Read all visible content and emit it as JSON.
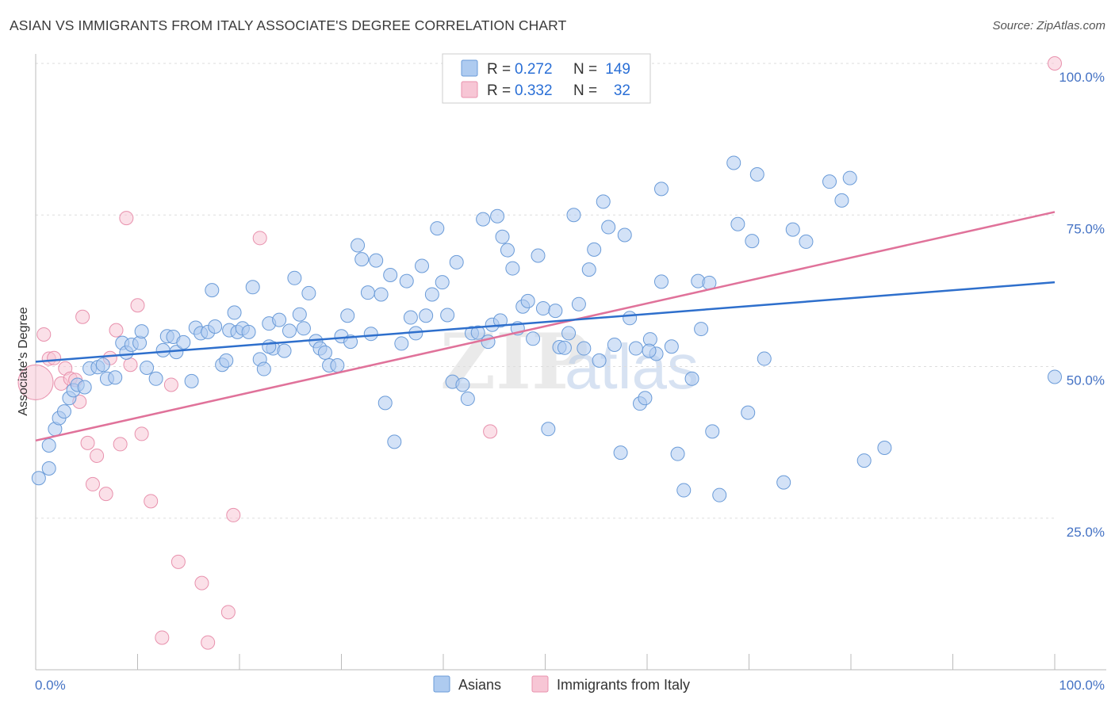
{
  "header": {
    "title": "ASIAN VS IMMIGRANTS FROM ITALY ASSOCIATE'S DEGREE CORRELATION CHART",
    "source": "Source: ZipAtlas.com"
  },
  "watermark": {
    "zip": "ZIP",
    "atlas": "atlas"
  },
  "legend_top": [
    {
      "r_label": "R =",
      "r_value": "0.272",
      "n_label": "N =",
      "n_value": "149"
    },
    {
      "r_label": "R =",
      "r_value": "0.332",
      "n_label": "N =",
      "n_value": "32"
    }
  ],
  "legend_bottom": [
    "Asians",
    "Immigrants from Italy"
  ],
  "colors": {
    "asian_fill": "#aecbf0",
    "asian_stroke": "#6a9bd8",
    "asian_line": "#2e6fcc",
    "italy_fill": "#f7c6d5",
    "italy_stroke": "#e891ad",
    "italy_line": "#e0729a",
    "tick_label": "#4472c4",
    "grid": "#dddddd"
  },
  "chart_data": {
    "type": "scatter",
    "title": "ASIAN VS IMMIGRANTS FROM ITALY ASSOCIATE'S DEGREE CORRELATION CHART",
    "xlabel": "",
    "ylabel": "Associate's Degree",
    "xlim": [
      0,
      100
    ],
    "ylim": [
      0,
      100
    ],
    "x_tick_labels": [
      "0.0%",
      "100.0%"
    ],
    "y_tick_labels": [
      "25.0%",
      "50.0%",
      "75.0%",
      "100.0%"
    ],
    "y_ticks": [
      25,
      50,
      75,
      100
    ],
    "grid": true,
    "legend_position": "top-center",
    "series": [
      {
        "name": "Asians",
        "r": 0.272,
        "n": 149,
        "trend": {
          "x": [
            0,
            100
          ],
          "y": [
            50.8,
            63.9
          ]
        },
        "points": [
          [
            0.3,
            31.6
          ],
          [
            1.3,
            33.2
          ],
          [
            1.3,
            37.0
          ],
          [
            1.9,
            39.7
          ],
          [
            2.3,
            41.5
          ],
          [
            2.8,
            42.6
          ],
          [
            3.3,
            44.8
          ],
          [
            3.7,
            46.1
          ],
          [
            4.1,
            47.0
          ],
          [
            4.8,
            46.6
          ],
          [
            5.3,
            49.7
          ],
          [
            6.1,
            49.9
          ],
          [
            7.0,
            48.0
          ],
          [
            6.6,
            50.3
          ],
          [
            7.8,
            48.2
          ],
          [
            8.5,
            53.9
          ],
          [
            8.9,
            52.3
          ],
          [
            9.4,
            53.6
          ],
          [
            10.2,
            53.9
          ],
          [
            10.4,
            55.8
          ],
          [
            10.9,
            49.8
          ],
          [
            11.8,
            48.0
          ],
          [
            12.5,
            52.7
          ],
          [
            12.9,
            55.0
          ],
          [
            13.5,
            54.9
          ],
          [
            13.8,
            52.4
          ],
          [
            14.5,
            54.0
          ],
          [
            15.3,
            47.6
          ],
          [
            15.7,
            56.4
          ],
          [
            16.2,
            55.5
          ],
          [
            16.9,
            55.7
          ],
          [
            17.3,
            62.6
          ],
          [
            17.6,
            56.6
          ],
          [
            18.3,
            50.3
          ],
          [
            18.7,
            51.0
          ],
          [
            19.0,
            56.0
          ],
          [
            19.5,
            58.9
          ],
          [
            19.8,
            55.7
          ],
          [
            20.3,
            56.3
          ],
          [
            20.9,
            55.7
          ],
          [
            21.3,
            63.1
          ],
          [
            22.0,
            51.2
          ],
          [
            22.4,
            49.6
          ],
          [
            22.9,
            57.1
          ],
          [
            23.3,
            53.0
          ],
          [
            23.9,
            57.7
          ],
          [
            24.4,
            52.6
          ],
          [
            24.9,
            55.9
          ],
          [
            25.4,
            64.6
          ],
          [
            25.9,
            58.6
          ],
          [
            26.3,
            56.3
          ],
          [
            26.8,
            62.1
          ],
          [
            27.5,
            54.2
          ],
          [
            27.9,
            53.0
          ],
          [
            28.4,
            52.3
          ],
          [
            28.8,
            50.2
          ],
          [
            29.6,
            50.2
          ],
          [
            30.0,
            55.0
          ],
          [
            30.6,
            58.4
          ],
          [
            30.9,
            54.1
          ],
          [
            31.6,
            70.0
          ],
          [
            32.0,
            67.7
          ],
          [
            32.6,
            62.2
          ],
          [
            32.9,
            55.4
          ],
          [
            33.4,
            67.5
          ],
          [
            33.9,
            61.9
          ],
          [
            34.3,
            44.0
          ],
          [
            34.8,
            65.1
          ],
          [
            35.2,
            37.6
          ],
          [
            35.9,
            53.8
          ],
          [
            36.4,
            64.1
          ],
          [
            36.8,
            58.1
          ],
          [
            37.3,
            55.5
          ],
          [
            37.9,
            66.6
          ],
          [
            38.3,
            58.4
          ],
          [
            38.9,
            61.9
          ],
          [
            39.4,
            72.8
          ],
          [
            39.9,
            63.9
          ],
          [
            40.4,
            58.5
          ],
          [
            40.9,
            47.5
          ],
          [
            41.3,
            67.2
          ],
          [
            41.9,
            47.0
          ],
          [
            42.4,
            44.7
          ],
          [
            42.8,
            55.5
          ],
          [
            43.4,
            55.6
          ],
          [
            43.9,
            74.3
          ],
          [
            44.4,
            54.1
          ],
          [
            44.8,
            56.9
          ],
          [
            45.3,
            74.8
          ],
          [
            45.8,
            71.4
          ],
          [
            46.3,
            69.2
          ],
          [
            46.8,
            66.2
          ],
          [
            47.3,
            56.3
          ],
          [
            47.8,
            59.9
          ],
          [
            48.3,
            60.8
          ],
          [
            48.8,
            54.6
          ],
          [
            49.3,
            68.3
          ],
          [
            49.8,
            59.6
          ],
          [
            50.3,
            39.7
          ],
          [
            51.0,
            59.2
          ],
          [
            51.4,
            53.2
          ],
          [
            51.9,
            53.1
          ],
          [
            52.3,
            55.5
          ],
          [
            52.8,
            75.0
          ],
          [
            53.3,
            60.3
          ],
          [
            53.8,
            53.0
          ],
          [
            54.3,
            66.0
          ],
          [
            54.8,
            69.3
          ],
          [
            55.3,
            51.0
          ],
          [
            55.7,
            77.2
          ],
          [
            56.2,
            73.0
          ],
          [
            56.8,
            53.6
          ],
          [
            57.4,
            35.8
          ],
          [
            57.8,
            71.7
          ],
          [
            58.3,
            58.0
          ],
          [
            58.9,
            53.0
          ],
          [
            59.3,
            43.9
          ],
          [
            59.8,
            44.8
          ],
          [
            60.3,
            54.5
          ],
          [
            60.9,
            52.1
          ],
          [
            61.4,
            79.3
          ],
          [
            61.4,
            64.0
          ],
          [
            62.4,
            53.3
          ],
          [
            63.0,
            35.6
          ],
          [
            63.6,
            29.6
          ],
          [
            64.4,
            48.0
          ],
          [
            65.0,
            64.1
          ],
          [
            65.3,
            56.2
          ],
          [
            66.1,
            63.8
          ],
          [
            66.4,
            39.3
          ],
          [
            67.1,
            28.8
          ],
          [
            68.5,
            83.6
          ],
          [
            68.9,
            73.5
          ],
          [
            69.9,
            42.4
          ],
          [
            70.3,
            70.7
          ],
          [
            70.8,
            81.7
          ],
          [
            71.5,
            51.3
          ],
          [
            73.4,
            30.9
          ],
          [
            74.3,
            72.6
          ],
          [
            75.6,
            70.6
          ],
          [
            77.9,
            80.5
          ],
          [
            79.1,
            77.4
          ],
          [
            79.9,
            81.1
          ],
          [
            81.3,
            34.5
          ],
          [
            83.3,
            36.6
          ],
          [
            100.0,
            48.3
          ],
          [
            22.9,
            53.3
          ],
          [
            45.6,
            57.6
          ],
          [
            60.2,
            52.6
          ]
        ]
      },
      {
        "name": "Immigrants from Italy",
        "r": 0.332,
        "n": 32,
        "trend": {
          "x": [
            0,
            100
          ],
          "y": [
            37.8,
            75.5
          ]
        },
        "points": [
          [
            0.0,
            47.4
          ],
          [
            0.8,
            55.3
          ],
          [
            1.3,
            51.3
          ],
          [
            1.8,
            51.4
          ],
          [
            2.5,
            47.2
          ],
          [
            2.9,
            49.7
          ],
          [
            3.4,
            48.0
          ],
          [
            3.9,
            47.8
          ],
          [
            4.3,
            44.2
          ],
          [
            4.6,
            58.2
          ],
          [
            5.1,
            37.4
          ],
          [
            6.0,
            35.3
          ],
          [
            5.6,
            30.6
          ],
          [
            6.9,
            29.0
          ],
          [
            7.3,
            51.4
          ],
          [
            7.9,
            56.0
          ],
          [
            8.3,
            37.2
          ],
          [
            8.9,
            74.5
          ],
          [
            9.3,
            50.3
          ],
          [
            10.0,
            60.1
          ],
          [
            10.4,
            38.9
          ],
          [
            11.3,
            27.8
          ],
          [
            12.4,
            5.3
          ],
          [
            13.3,
            47.0
          ],
          [
            14.0,
            17.8
          ],
          [
            16.3,
            14.3
          ],
          [
            16.9,
            4.5
          ],
          [
            18.9,
            9.5
          ],
          [
            19.4,
            25.5
          ],
          [
            22.0,
            71.2
          ],
          [
            44.6,
            39.3
          ],
          [
            100.0,
            100.0
          ]
        ]
      }
    ]
  }
}
